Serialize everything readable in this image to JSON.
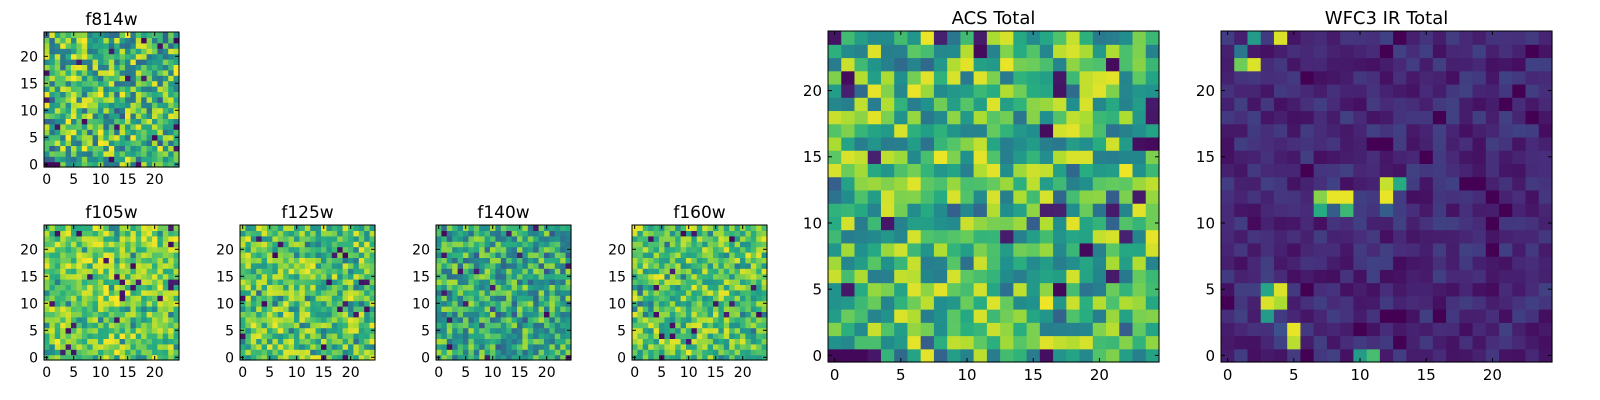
{
  "chart_data": [
    {
      "type": "heatmap",
      "title": "f814w",
      "colormap": "viridis",
      "grid_size": 25,
      "tick_step": 5,
      "xlim": [
        0,
        24
      ],
      "ylim": [
        0,
        24
      ],
      "xticks": [
        "0",
        "5",
        "10",
        "15",
        "20"
      ],
      "yticks": [
        "0",
        "5",
        "10",
        "15",
        "20"
      ],
      "seed": 11,
      "base": 0.68,
      "noise": 0.32,
      "hotspots": [],
      "cold_row0": true
    },
    {
      "type": "heatmap",
      "title": "f105w",
      "colormap": "viridis",
      "grid_size": 25,
      "tick_step": 5,
      "xlim": [
        0,
        24
      ],
      "ylim": [
        0,
        24
      ],
      "xticks": [
        "0",
        "5",
        "10",
        "15",
        "20"
      ],
      "yticks": [
        "0",
        "5",
        "10",
        "15",
        "20"
      ],
      "seed": 23,
      "base": 0.8,
      "noise": 0.2,
      "hotspots": [],
      "cold_row0": false
    },
    {
      "type": "heatmap",
      "title": "f125w",
      "colormap": "viridis",
      "grid_size": 25,
      "tick_step": 5,
      "xlim": [
        0,
        24
      ],
      "ylim": [
        0,
        24
      ],
      "xticks": [
        "0",
        "5",
        "10",
        "15",
        "20"
      ],
      "yticks": [
        "0",
        "5",
        "10",
        "15",
        "20"
      ],
      "seed": 37,
      "base": 0.74,
      "noise": 0.24,
      "hotspots": [],
      "cold_row0": false
    },
    {
      "type": "heatmap",
      "title": "f140w",
      "colormap": "viridis",
      "grid_size": 25,
      "tick_step": 5,
      "xlim": [
        0,
        24
      ],
      "ylim": [
        0,
        24
      ],
      "xticks": [
        "0",
        "5",
        "10",
        "15",
        "20"
      ],
      "yticks": [
        "0",
        "5",
        "10",
        "15",
        "20"
      ],
      "seed": 41,
      "base": 0.62,
      "noise": 0.26,
      "hotspots": [],
      "cold_row0": false
    },
    {
      "type": "heatmap",
      "title": "f160w",
      "colormap": "viridis",
      "grid_size": 25,
      "tick_step": 5,
      "xlim": [
        0,
        24
      ],
      "ylim": [
        0,
        24
      ],
      "xticks": [
        "0",
        "5",
        "10",
        "15",
        "20"
      ],
      "yticks": [
        "0",
        "5",
        "10",
        "15",
        "20"
      ],
      "seed": 53,
      "base": 0.74,
      "noise": 0.24,
      "hotspots": [],
      "cold_row0": false
    },
    {
      "type": "heatmap",
      "title": "ACS Total",
      "colormap": "viridis",
      "grid_size": 25,
      "tick_step": 5,
      "xlim": [
        0,
        24
      ],
      "ylim": [
        0,
        24
      ],
      "xticks": [
        "0",
        "5",
        "10",
        "15",
        "20"
      ],
      "yticks": [
        "0",
        "5",
        "10",
        "15",
        "20"
      ],
      "seed": 67,
      "base": 0.7,
      "noise": 0.28,
      "hotspots": [],
      "cold_row0": true
    },
    {
      "type": "heatmap",
      "title": "WFC3 IR Total",
      "colormap": "viridis",
      "grid_size": 25,
      "tick_step": 5,
      "xlim": [
        0,
        24
      ],
      "ylim": [
        0,
        24
      ],
      "xticks": [
        "0",
        "5",
        "10",
        "15",
        "20"
      ],
      "yticks": [
        "0",
        "5",
        "10",
        "15",
        "20"
      ],
      "seed": 79,
      "base": 0.12,
      "noise": 0.08,
      "hotspots": [
        {
          "x": 1,
          "y": 22,
          "v": 0.78
        },
        {
          "x": 2,
          "y": 22,
          "v": 0.95
        },
        {
          "x": 2,
          "y": 24,
          "v": 0.55
        },
        {
          "x": 4,
          "y": 24,
          "v": 0.95
        },
        {
          "x": 1,
          "y": 23,
          "v": 0.4
        },
        {
          "x": 7,
          "y": 12,
          "v": 0.82
        },
        {
          "x": 8,
          "y": 12,
          "v": 0.97
        },
        {
          "x": 9,
          "y": 12,
          "v": 0.97
        },
        {
          "x": 7,
          "y": 11,
          "v": 0.62
        },
        {
          "x": 8,
          "y": 11,
          "v": 0.3
        },
        {
          "x": 9,
          "y": 11,
          "v": 0.68
        },
        {
          "x": 12,
          "y": 13,
          "v": 0.92
        },
        {
          "x": 13,
          "y": 13,
          "v": 0.62
        },
        {
          "x": 12,
          "y": 12,
          "v": 0.97
        },
        {
          "x": 12,
          "y": 11,
          "v": 0.3
        },
        {
          "x": 3,
          "y": 5,
          "v": 0.6
        },
        {
          "x": 4,
          "y": 5,
          "v": 0.95
        },
        {
          "x": 3,
          "y": 4,
          "v": 0.95
        },
        {
          "x": 4,
          "y": 4,
          "v": 0.88
        },
        {
          "x": 3,
          "y": 3,
          "v": 0.55
        },
        {
          "x": 5,
          "y": 2,
          "v": 0.97
        },
        {
          "x": 5,
          "y": 1,
          "v": 0.9
        },
        {
          "x": 4,
          "y": 2,
          "v": 0.25
        },
        {
          "x": 10,
          "y": 0,
          "v": 0.55
        },
        {
          "x": 11,
          "y": 0,
          "v": 0.7
        }
      ],
      "cold_row0": false
    }
  ]
}
